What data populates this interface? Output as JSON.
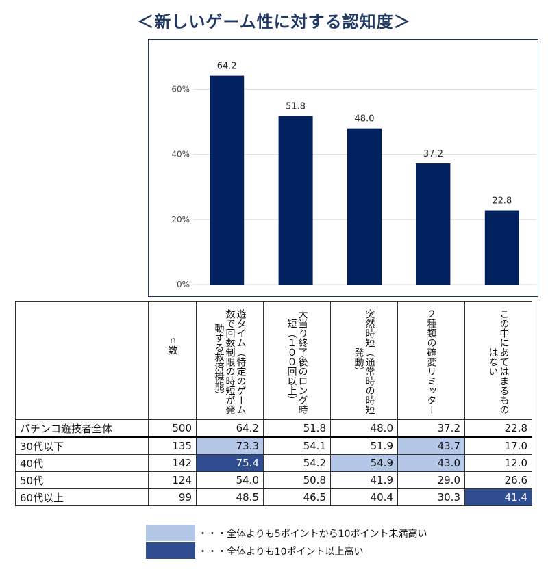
{
  "title": "＜新しいゲーム性に対する認知度＞",
  "colors": {
    "bar": "#00215e",
    "light_highlight": "#b4c7e7",
    "dark_highlight": "#2f4d8f",
    "title": "#1f3864"
  },
  "chart_data": {
    "type": "bar",
    "categories": [
      "遊タイム（特定のゲーム数で回数制限の時短が発動する救済機能）",
      "大当り終了後のロング時短（100回以上）",
      "突然時短（通常時の時短発動）",
      "2種類の確変リミッター",
      "この中にあてはまるものはない"
    ],
    "values": [
      64.2,
      51.8,
      48.0,
      37.2,
      22.8
    ],
    "value_labels": [
      "64.2",
      "51.8",
      "48.0",
      "37.2",
      "22.8"
    ],
    "yticks": [
      0,
      20,
      40,
      60
    ],
    "ytick_labels": [
      "0%",
      "20%",
      "40%",
      "60%"
    ],
    "ylim": [
      0,
      70
    ],
    "grid": true,
    "legend": "none"
  },
  "table": {
    "n_header": "ｎ数",
    "columns": [
      "遊タイム（特定のゲーム数で回数制限の時短が発動する救済機能）",
      "大当り終了後のロング時短（１００回以上）",
      "突然時短（通常時の時短発動）",
      "２種類の確変リミッター",
      "この中にあてはまるものはない"
    ],
    "rows": [
      {
        "label": "パチンコ遊技者全体",
        "n": "500",
        "values": [
          "64.2",
          "51.8",
          "48.0",
          "37.2",
          "22.8"
        ],
        "highlight": [
          0,
          0,
          0,
          0,
          0
        ]
      },
      {
        "label": "30代以下",
        "n": "135",
        "values": [
          "73.3",
          "54.1",
          "51.9",
          "43.7",
          "17.0"
        ],
        "highlight": [
          1,
          0,
          0,
          1,
          0
        ]
      },
      {
        "label": "40代",
        "n": "142",
        "values": [
          "75.4",
          "54.2",
          "54.9",
          "43.0",
          "12.0"
        ],
        "highlight": [
          2,
          0,
          1,
          1,
          0
        ]
      },
      {
        "label": "50代",
        "n": "124",
        "values": [
          "54.0",
          "50.8",
          "41.9",
          "29.0",
          "26.6"
        ],
        "highlight": [
          0,
          0,
          0,
          0,
          0
        ]
      },
      {
        "label": "60代以上",
        "n": "99",
        "values": [
          "48.5",
          "46.5",
          "40.4",
          "30.3",
          "41.4"
        ],
        "highlight": [
          0,
          0,
          0,
          0,
          2
        ]
      }
    ]
  },
  "legend": {
    "light": "・・・全体よりも5ポイントから10ポイント未満高い",
    "dark": "・・・全体よりも10ポイント以上高い"
  }
}
